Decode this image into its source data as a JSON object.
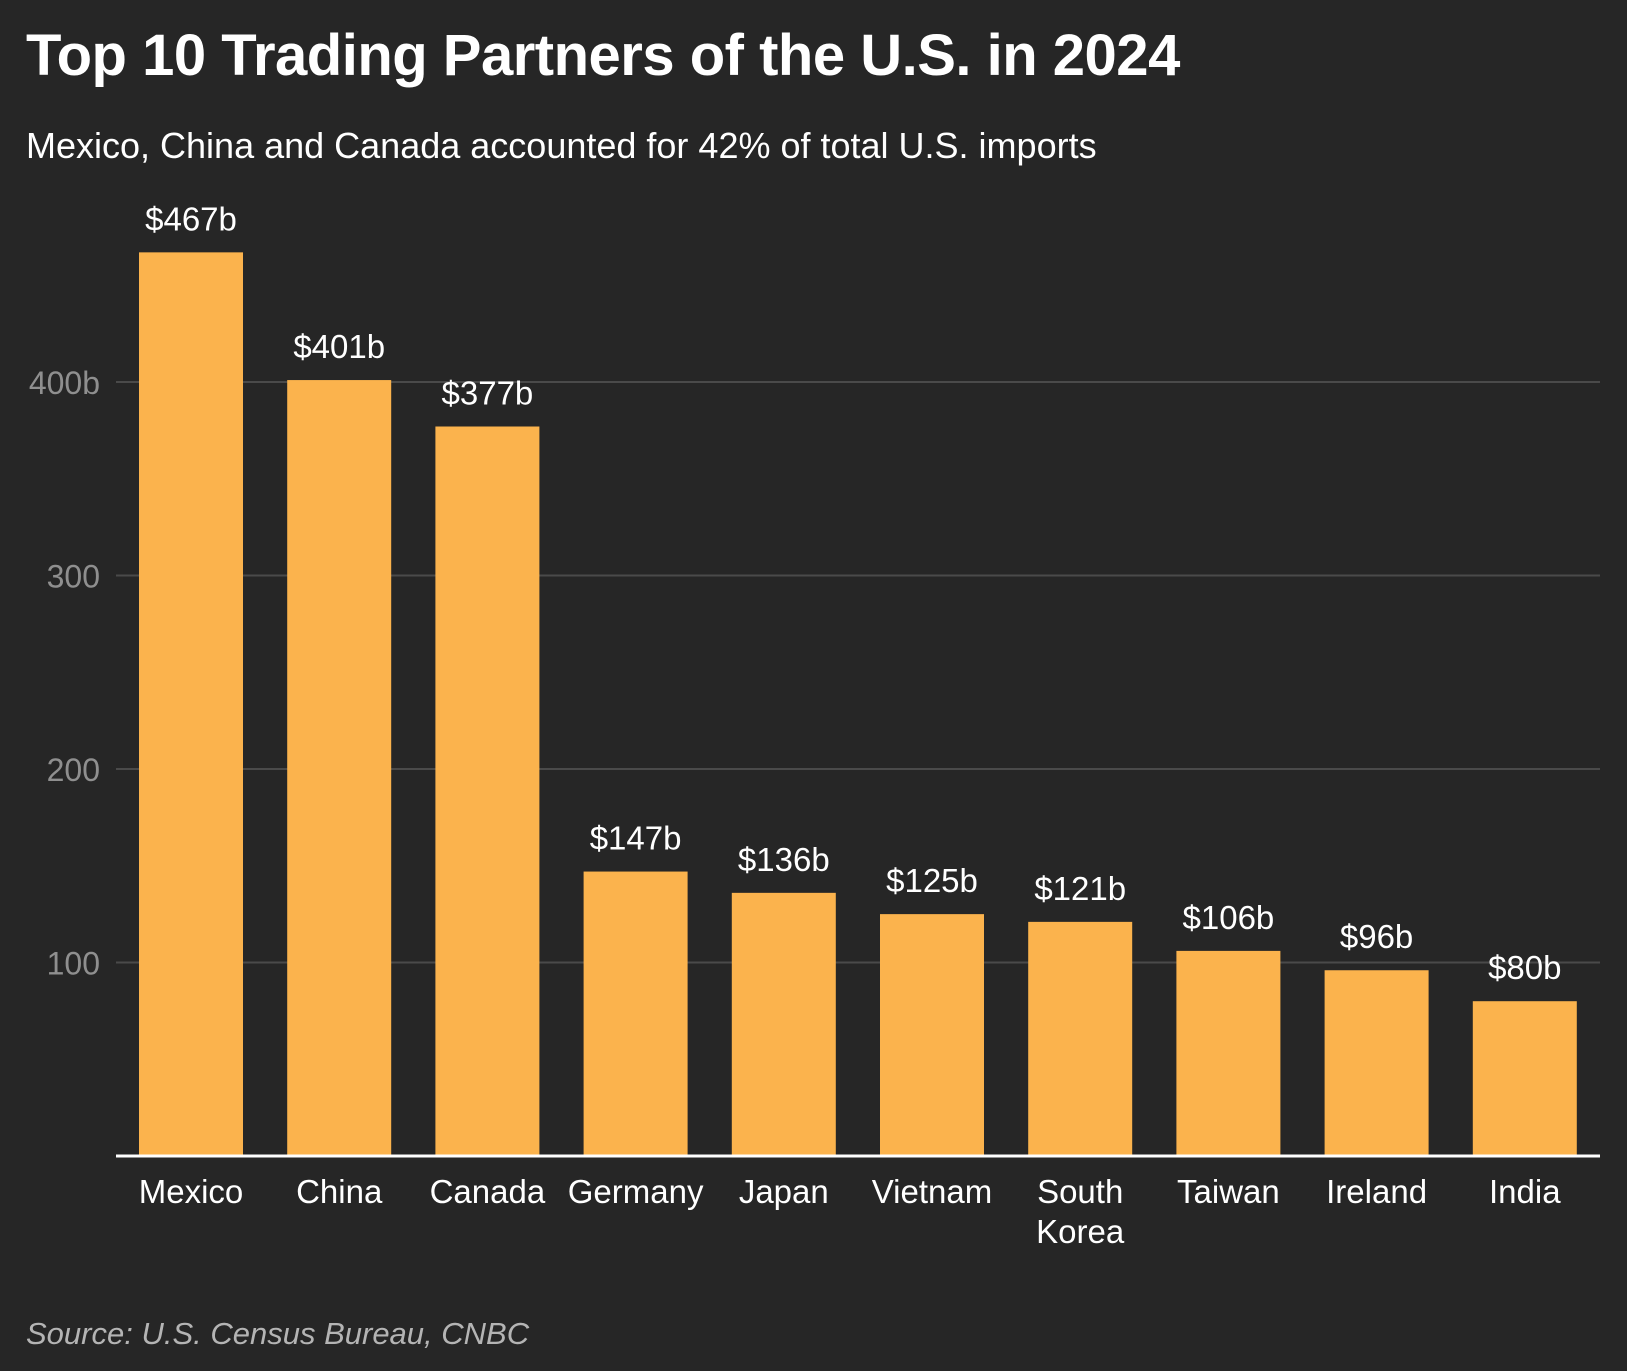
{
  "page": {
    "title": "Top 10 Trading Partners of the U.S. in 2024",
    "subtitle": "Mexico, China and Canada accounted for 42% of total U.S. imports",
    "source": "Source: U.S. Census Bureau, CNBC"
  },
  "colors": {
    "background": "#262626",
    "bar": "#fbb34d",
    "gridline": "#4a4a4a",
    "axis": "#ffffff",
    "tick_text": "#8f8f8f",
    "label_text": "#ffffff",
    "source_text": "#b4b4b4"
  },
  "chart_data": {
    "type": "bar",
    "title": "Top 10 Trading Partners of the U.S. in 2024",
    "subtitle": "Mexico, China and Canada accounted for 42% of total U.S. imports",
    "xlabel": "",
    "ylabel": "",
    "categories": [
      "Mexico",
      "China",
      "Canada",
      "Germany",
      "Japan",
      "Vietnam",
      "South Korea",
      "Taiwan",
      "Ireland",
      "India"
    ],
    "values": [
      467,
      401,
      377,
      147,
      136,
      125,
      121,
      106,
      96,
      80
    ],
    "value_labels": [
      "$467b",
      "$401b",
      "$377b",
      "$147b",
      "$136b",
      "$125b",
      "$121b",
      "$106b",
      "$96b",
      "$80b"
    ],
    "ylim": [
      0,
      480
    ],
    "yticks": [
      100,
      200,
      300,
      400
    ],
    "ytick_labels": [
      "100",
      "200",
      "300",
      "400b"
    ],
    "grid": true,
    "legend": "none",
    "source": "Source: U.S. Census Bureau, CNBC"
  }
}
